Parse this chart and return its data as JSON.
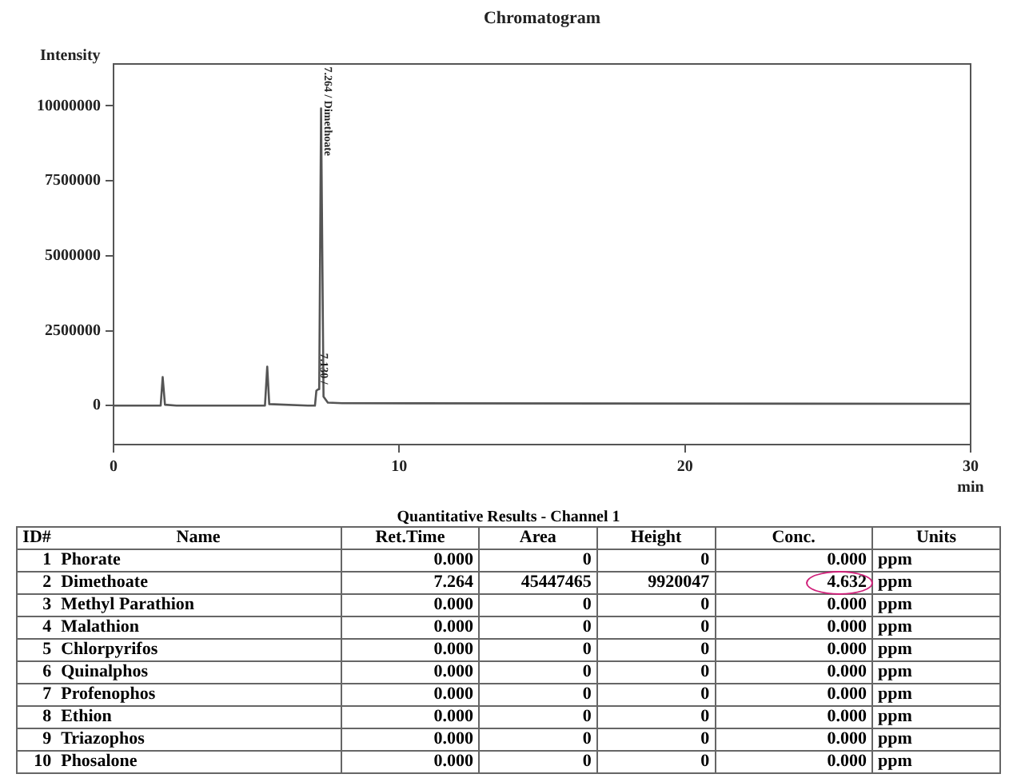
{
  "chart_data": {
    "type": "line",
    "title": "Chromatogram",
    "xlabel": "min",
    "ylabel": "Intensity",
    "xlim": [
      0,
      30
    ],
    "xticks": [
      0,
      10,
      20,
      30
    ],
    "ylim": [
      -1300000,
      11400000
    ],
    "yticks": [
      0,
      2500000,
      5000000,
      7500000,
      10000000
    ],
    "grid": false,
    "legend": false,
    "marker": "none",
    "line_style": "solid",
    "series": [
      {
        "color": "#555555",
        "x": [
          0,
          1.65,
          1.72,
          1.8,
          2.2,
          5.3,
          5.38,
          5.45,
          6.8,
          7.05,
          7.1,
          7.18,
          7.2,
          7.264,
          7.35,
          7.5,
          8,
          30
        ],
        "values": [
          0,
          0,
          950000,
          30000,
          0,
          0,
          1300000,
          50000,
          0,
          0,
          500000,
          550000,
          600000,
          9920047,
          300000,
          100000,
          80000,
          60000
        ]
      }
    ],
    "annotations": [
      {
        "text": "7.264 / Dimethoate",
        "x": 7.264,
        "y": 9920047
      },
      {
        "text": "7.130 /",
        "x": 7.13,
        "y": 550000
      },
      "Quantitative Results - Channel 1",
      "ID#",
      "Name",
      "Ret.Time",
      "Area",
      "Height",
      "Conc.",
      "Units",
      "1",
      "Phorate",
      "0.000",
      "0",
      "0",
      "0.000",
      "ppm",
      "2",
      "Dimethoate",
      "7.264",
      "45447465",
      "9920047",
      "4.632",
      "ppm",
      "3",
      "Methyl Parathion",
      "0.000",
      "0",
      "0",
      "0.000",
      "ppm",
      "4",
      "Malathion",
      "0.000",
      "0",
      "0",
      "0.000",
      "ppm",
      "5",
      "Chlorpyrifos",
      "0.000",
      "0",
      "0",
      "0.000",
      "ppm",
      "6",
      "Quinalphos",
      "0.000",
      "0",
      "0",
      "0.000",
      "ppm",
      "7",
      "Profenophos",
      "0.000",
      "0",
      "0",
      "0.000",
      "ppm",
      "8",
      "Ethion",
      "0.000",
      "0",
      "0",
      "0.000",
      "ppm",
      "9",
      "Triazophos",
      "0.000",
      "0",
      "0",
      "0.000",
      "ppm",
      "10",
      "Phosalone",
      "0.000",
      "0",
      "0",
      "0.000",
      "ppm"
    ]
  }
}
